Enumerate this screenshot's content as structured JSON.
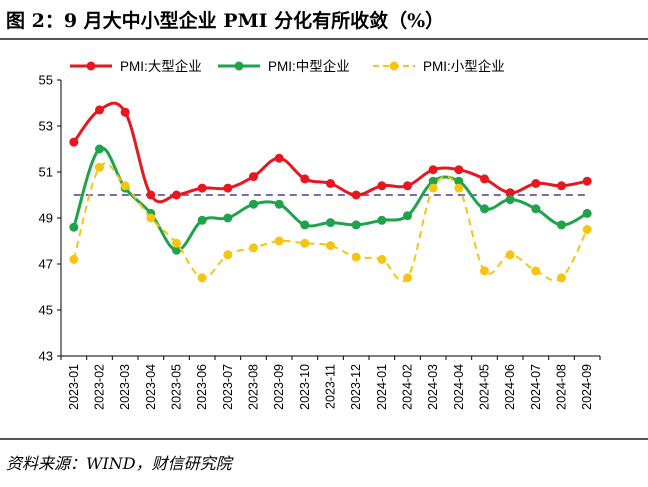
{
  "header": {
    "title": "图 2：9 月大中小型企业 PMI 分化有所收敛（%）"
  },
  "footer": {
    "source": "资料来源：WIND，财信研究院"
  },
  "colors": {
    "large": "#e8171f",
    "medium": "#1ea34a",
    "small": "#f7c414",
    "reference": "#7a6ab0",
    "axis": "#000000"
  },
  "chart_data": {
    "type": "line",
    "title": "",
    "xlabel": "",
    "ylabel": "",
    "ylim": [
      43,
      55
    ],
    "yticks": [
      43,
      45,
      47,
      49,
      51,
      53,
      55
    ],
    "reference_line": 50,
    "legend_position": "top",
    "categories": [
      "2023-01",
      "2023-02",
      "2023-03",
      "2023-04",
      "2023-05",
      "2023-06",
      "2023-07",
      "2023-08",
      "2023-09",
      "2023-10",
      "2023-11",
      "2023-12",
      "2024-01",
      "2024-02",
      "2024-03",
      "2024-04",
      "2024-05",
      "2024-06",
      "2024-07",
      "2024-08",
      "2024-09"
    ],
    "series": [
      {
        "name": "PMI:大型企业",
        "key": "large",
        "style": "solid",
        "values": [
          52.3,
          53.7,
          53.6,
          50.0,
          50.0,
          50.3,
          50.3,
          50.8,
          51.6,
          50.7,
          50.5,
          50.0,
          50.4,
          50.4,
          51.1,
          51.1,
          50.7,
          50.1,
          50.5,
          50.4,
          50.6
        ]
      },
      {
        "name": "PMI:中型企业",
        "key": "medium",
        "style": "solid",
        "values": [
          48.6,
          52.0,
          50.3,
          49.2,
          47.6,
          48.9,
          49.0,
          49.6,
          49.6,
          48.7,
          48.8,
          48.7,
          48.9,
          49.1,
          50.6,
          50.6,
          49.4,
          49.8,
          49.4,
          48.7,
          49.2
        ]
      },
      {
        "name": "PMI:小型企业",
        "key": "small",
        "style": "dashed",
        "values": [
          47.2,
          51.2,
          50.4,
          49.0,
          47.9,
          46.4,
          47.4,
          47.7,
          48.0,
          47.9,
          47.8,
          47.3,
          47.2,
          46.4,
          50.3,
          50.3,
          46.7,
          47.4,
          46.7,
          46.4,
          48.5
        ]
      }
    ]
  }
}
